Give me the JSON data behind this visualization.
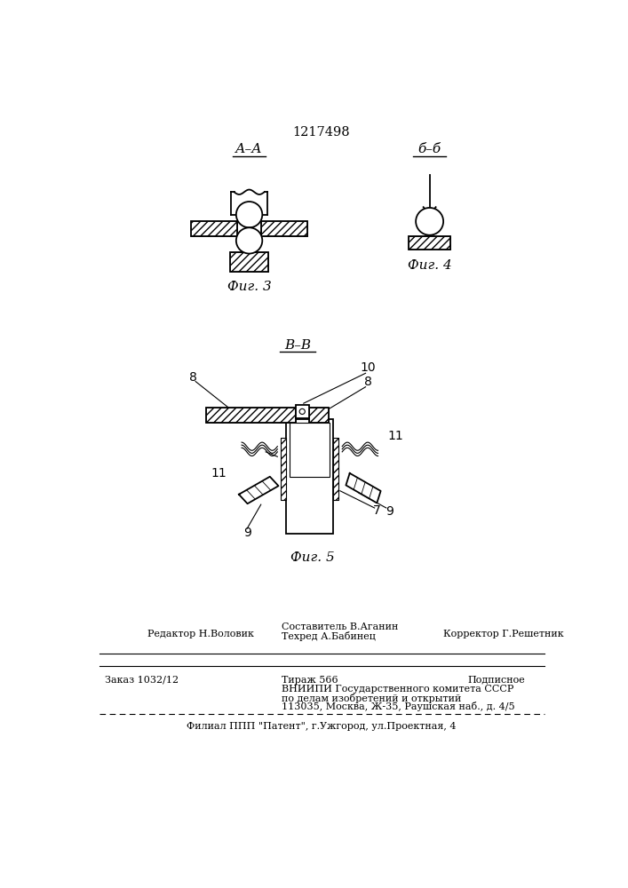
{
  "patent_number": "1217498",
  "fig3_label": "А–А",
  "fig4_label": "б–б",
  "fig5_label": "В–В",
  "fig3_caption": "Фиг. 3",
  "fig4_caption": "Фиг. 4",
  "fig5_caption": "Фиг. 5",
  "bg_color": "#ffffff",
  "line_color": "#000000",
  "footer_line1_left": "Редактор Н.Воловик",
  "footer_line1_mid1": "Составитель В.Аганин",
  "footer_line1_mid2": "Техред А.Бабинец",
  "footer_line1_right": "Корректор Г.Решетник",
  "footer_line2_left": "Заказ 1032/12",
  "footer_line2_mid": "Тираж 566",
  "footer_line2_right": "Подписное",
  "footer_line3": "ВНИИПИ Государственного комитета СССР",
  "footer_line4": "по делам изобретений и открытий",
  "footer_line5": "113035, Москва, Ж-35, Раушская наб., д. 4/5",
  "footer_line6": "Филиал ППП \"Патент\", г.Ужгород, ул.Проектная, 4"
}
